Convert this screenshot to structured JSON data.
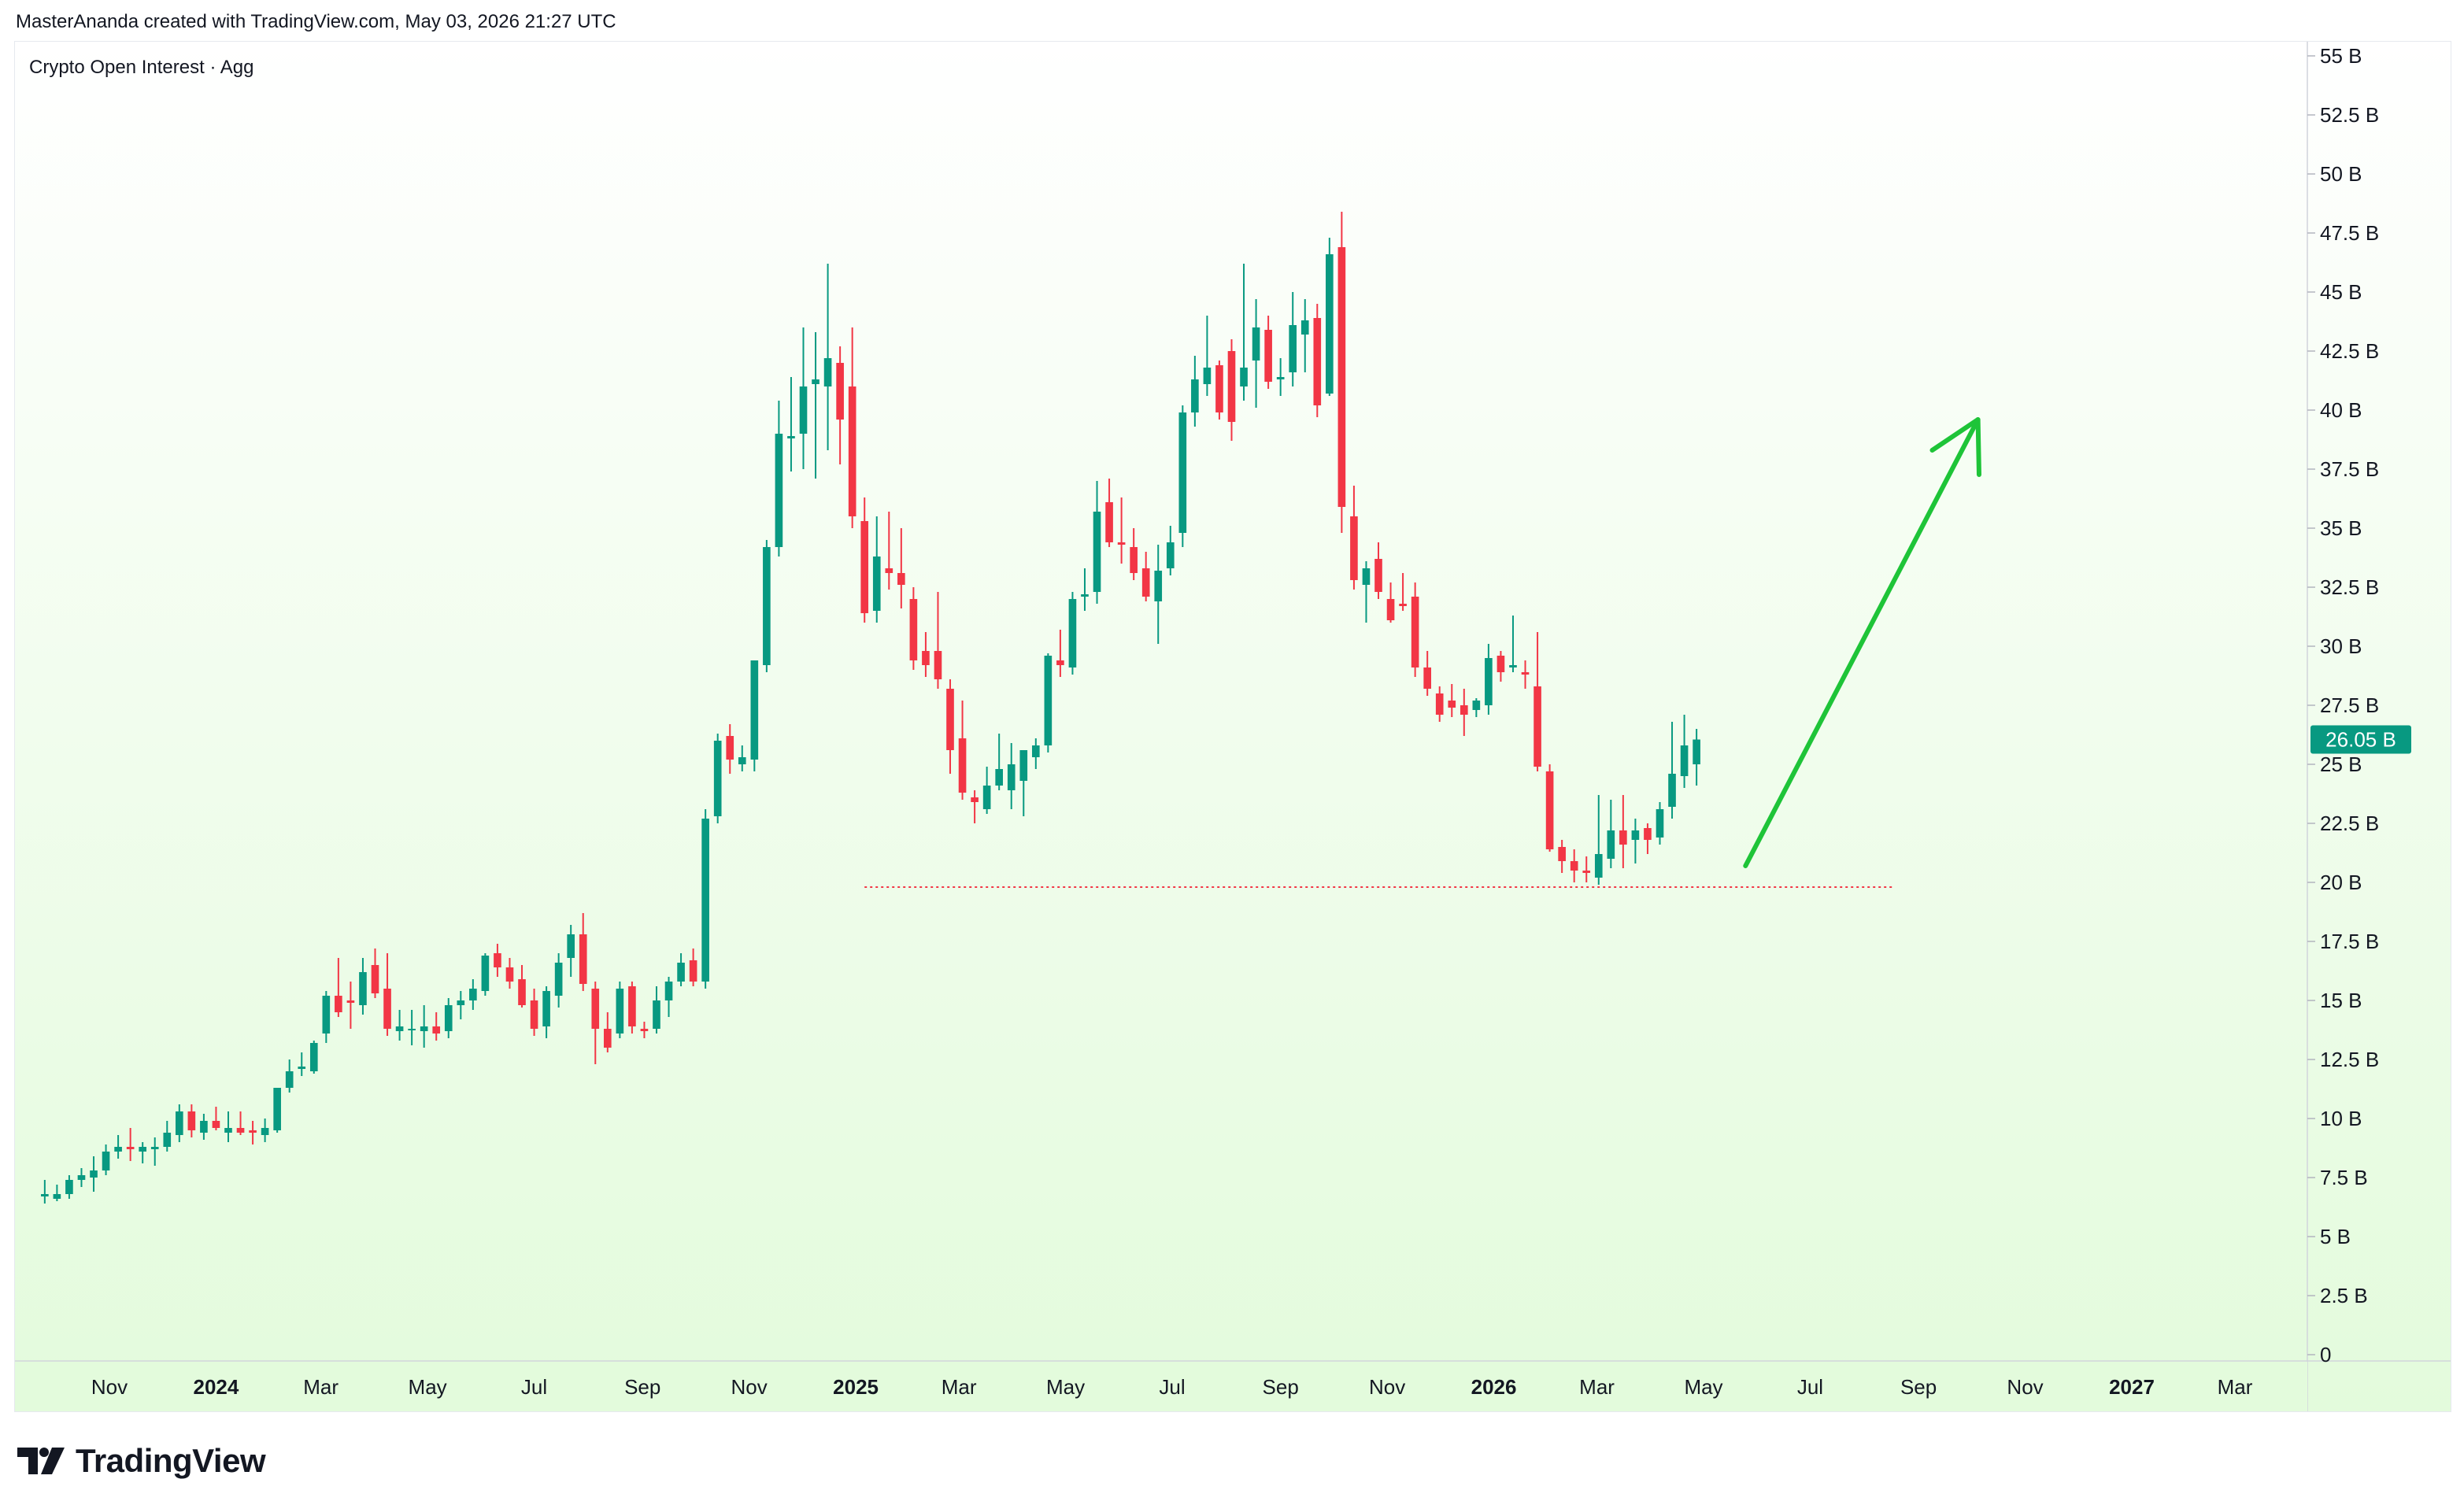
{
  "header": {
    "caption": "MasterAnanda created with TradingView.com, May 03, 2026 21:27 UTC"
  },
  "branding": {
    "logo_text": "TradingView",
    "logo_icon": "tradingview-logo-icon"
  },
  "colors": {
    "up": "#089981",
    "down": "#f23645",
    "arrow": "#1ec438",
    "support_line": "#f23645",
    "background_top": "#ffffff",
    "background_bottom": "#e3fbdc"
  },
  "chart_data": {
    "type": "candlestick",
    "title": "Crypto Open Interest · Agg",
    "interval": "weekly",
    "y_unit": "B",
    "ylim": [
      0,
      55
    ],
    "y_ticks": [
      "55 B",
      "52.5 B",
      "50 B",
      "47.5 B",
      "45 B",
      "42.5 B",
      "40 B",
      "37.5 B",
      "35 B",
      "32.5 B",
      "30 B",
      "27.5 B",
      "25 B",
      "22.5 B",
      "20 B",
      "17.5 B",
      "15 B",
      "12.5 B",
      "10 B",
      "7.5 B",
      "5 B",
      "2.5 B",
      "0"
    ],
    "x_ticks": [
      {
        "label": "Nov",
        "date": "2023-11-01",
        "bold": false
      },
      {
        "label": "2024",
        "date": "2024-01-01",
        "bold": true
      },
      {
        "label": "Mar",
        "date": "2024-03-01",
        "bold": false
      },
      {
        "label": "May",
        "date": "2024-05-01",
        "bold": false
      },
      {
        "label": "Jul",
        "date": "2024-07-01",
        "bold": false
      },
      {
        "label": "Sep",
        "date": "2024-09-01",
        "bold": false
      },
      {
        "label": "Nov",
        "date": "2024-11-01",
        "bold": false
      },
      {
        "label": "2025",
        "date": "2025-01-01",
        "bold": true
      },
      {
        "label": "Mar",
        "date": "2025-03-01",
        "bold": false
      },
      {
        "label": "May",
        "date": "2025-05-01",
        "bold": false
      },
      {
        "label": "Jul",
        "date": "2025-07-01",
        "bold": false
      },
      {
        "label": "Sep",
        "date": "2025-09-01",
        "bold": false
      },
      {
        "label": "Nov",
        "date": "2025-11-01",
        "bold": false
      },
      {
        "label": "2026",
        "date": "2026-01-01",
        "bold": true
      },
      {
        "label": "Mar",
        "date": "2026-03-01",
        "bold": false
      },
      {
        "label": "May",
        "date": "2026-05-01",
        "bold": false
      },
      {
        "label": "Jul",
        "date": "2026-07-01",
        "bold": false
      },
      {
        "label": "Sep",
        "date": "2026-09-01",
        "bold": false
      },
      {
        "label": "Nov",
        "date": "2026-11-01",
        "bold": false
      },
      {
        "label": "2027",
        "date": "2027-01-01",
        "bold": true
      },
      {
        "label": "Mar",
        "date": "2027-03-01",
        "bold": false
      }
    ],
    "candles": [
      {
        "date": "2023-09-25",
        "o": 6.7,
        "h": 7.4,
        "l": 6.4,
        "c": 6.8
      },
      {
        "date": "2023-10-02",
        "o": 6.6,
        "h": 7.2,
        "l": 6.5,
        "c": 6.8
      },
      {
        "date": "2023-10-09",
        "o": 6.8,
        "h": 7.6,
        "l": 6.6,
        "c": 7.4
      },
      {
        "date": "2023-10-16",
        "o": 7.4,
        "h": 7.9,
        "l": 7.1,
        "c": 7.6
      },
      {
        "date": "2023-10-23",
        "o": 7.5,
        "h": 8.4,
        "l": 6.9,
        "c": 7.8
      },
      {
        "date": "2023-10-30",
        "o": 7.8,
        "h": 8.9,
        "l": 7.6,
        "c": 8.6
      },
      {
        "date": "2023-11-06",
        "o": 8.6,
        "h": 9.3,
        "l": 8.3,
        "c": 8.8
      },
      {
        "date": "2023-11-13",
        "o": 8.8,
        "h": 9.6,
        "l": 8.2,
        "c": 8.7
      },
      {
        "date": "2023-11-20",
        "o": 8.6,
        "h": 9.0,
        "l": 8.1,
        "c": 8.8
      },
      {
        "date": "2023-11-27",
        "o": 8.7,
        "h": 9.2,
        "l": 8.0,
        "c": 8.8
      },
      {
        "date": "2023-12-04",
        "o": 8.8,
        "h": 9.9,
        "l": 8.6,
        "c": 9.4
      },
      {
        "date": "2023-12-11",
        "o": 9.3,
        "h": 10.6,
        "l": 9.0,
        "c": 10.3
      },
      {
        "date": "2023-12-18",
        "o": 10.3,
        "h": 10.6,
        "l": 9.2,
        "c": 9.5
      },
      {
        "date": "2023-12-25",
        "o": 9.4,
        "h": 10.2,
        "l": 9.1,
        "c": 9.9
      },
      {
        "date": "2024-01-01",
        "o": 9.9,
        "h": 10.5,
        "l": 9.5,
        "c": 9.6
      },
      {
        "date": "2024-01-08",
        "o": 9.4,
        "h": 10.3,
        "l": 9.0,
        "c": 9.6
      },
      {
        "date": "2024-01-15",
        "o": 9.6,
        "h": 10.3,
        "l": 9.3,
        "c": 9.4
      },
      {
        "date": "2024-01-22",
        "o": 9.5,
        "h": 9.9,
        "l": 8.9,
        "c": 9.4
      },
      {
        "date": "2024-01-29",
        "o": 9.3,
        "h": 10.0,
        "l": 9.0,
        "c": 9.6
      },
      {
        "date": "2024-02-05",
        "o": 9.5,
        "h": 11.1,
        "l": 9.4,
        "c": 11.3
      },
      {
        "date": "2024-02-12",
        "o": 11.3,
        "h": 12.5,
        "l": 11.1,
        "c": 12.0
      },
      {
        "date": "2024-02-19",
        "o": 12.1,
        "h": 12.8,
        "l": 11.8,
        "c": 12.2
      },
      {
        "date": "2024-02-26",
        "o": 12.0,
        "h": 13.3,
        "l": 11.9,
        "c": 13.2
      },
      {
        "date": "2024-03-04",
        "o": 13.6,
        "h": 15.4,
        "l": 13.2,
        "c": 15.2
      },
      {
        "date": "2024-03-11",
        "o": 15.2,
        "h": 16.8,
        "l": 14.3,
        "c": 14.5
      },
      {
        "date": "2024-03-18",
        "o": 15.0,
        "h": 15.8,
        "l": 13.8,
        "c": 14.9
      },
      {
        "date": "2024-03-25",
        "o": 14.8,
        "h": 16.8,
        "l": 14.4,
        "c": 16.2
      },
      {
        "date": "2024-04-01",
        "o": 16.5,
        "h": 17.2,
        "l": 15.1,
        "c": 15.3
      },
      {
        "date": "2024-04-08",
        "o": 15.5,
        "h": 17.0,
        "l": 13.5,
        "c": 13.8
      },
      {
        "date": "2024-04-15",
        "o": 13.7,
        "h": 14.6,
        "l": 13.3,
        "c": 13.9
      },
      {
        "date": "2024-04-22",
        "o": 13.8,
        "h": 14.6,
        "l": 13.1,
        "c": 13.8
      },
      {
        "date": "2024-04-29",
        "o": 13.7,
        "h": 14.8,
        "l": 13.0,
        "c": 13.9
      },
      {
        "date": "2024-05-06",
        "o": 13.9,
        "h": 14.5,
        "l": 13.3,
        "c": 13.6
      },
      {
        "date": "2024-05-13",
        "o": 13.7,
        "h": 15.1,
        "l": 13.4,
        "c": 14.8
      },
      {
        "date": "2024-05-20",
        "o": 14.8,
        "h": 15.4,
        "l": 14.2,
        "c": 15.0
      },
      {
        "date": "2024-05-27",
        "o": 15.0,
        "h": 15.9,
        "l": 14.6,
        "c": 15.5
      },
      {
        "date": "2024-06-03",
        "o": 15.4,
        "h": 17.0,
        "l": 15.2,
        "c": 16.9
      },
      {
        "date": "2024-06-10",
        "o": 17.0,
        "h": 17.4,
        "l": 16.0,
        "c": 16.4
      },
      {
        "date": "2024-06-17",
        "o": 16.4,
        "h": 16.8,
        "l": 15.5,
        "c": 15.8
      },
      {
        "date": "2024-06-24",
        "o": 15.9,
        "h": 16.5,
        "l": 14.7,
        "c": 14.8
      },
      {
        "date": "2024-07-01",
        "o": 15.0,
        "h": 15.5,
        "l": 13.5,
        "c": 13.8
      },
      {
        "date": "2024-07-08",
        "o": 13.9,
        "h": 15.6,
        "l": 13.4,
        "c": 15.4
      },
      {
        "date": "2024-07-15",
        "o": 15.2,
        "h": 17.0,
        "l": 14.7,
        "c": 16.6
      },
      {
        "date": "2024-07-22",
        "o": 16.8,
        "h": 18.2,
        "l": 16.0,
        "c": 17.8
      },
      {
        "date": "2024-07-29",
        "o": 17.8,
        "h": 18.7,
        "l": 15.4,
        "c": 15.7
      },
      {
        "date": "2024-08-05",
        "o": 15.5,
        "h": 15.8,
        "l": 12.3,
        "c": 13.8
      },
      {
        "date": "2024-08-12",
        "o": 13.8,
        "h": 14.5,
        "l": 12.8,
        "c": 13.0
      },
      {
        "date": "2024-08-19",
        "o": 13.6,
        "h": 15.8,
        "l": 13.4,
        "c": 15.5
      },
      {
        "date": "2024-08-26",
        "o": 15.6,
        "h": 15.8,
        "l": 13.6,
        "c": 13.9
      },
      {
        "date": "2024-09-02",
        "o": 13.8,
        "h": 14.1,
        "l": 13.4,
        "c": 13.7
      },
      {
        "date": "2024-09-09",
        "o": 13.8,
        "h": 15.6,
        "l": 13.6,
        "c": 15.0
      },
      {
        "date": "2024-09-16",
        "o": 15.0,
        "h": 16.0,
        "l": 14.3,
        "c": 15.8
      },
      {
        "date": "2024-09-23",
        "o": 15.8,
        "h": 17.0,
        "l": 15.6,
        "c": 16.6
      },
      {
        "date": "2024-09-30",
        "o": 16.7,
        "h": 17.2,
        "l": 15.6,
        "c": 15.8
      },
      {
        "date": "2024-10-07",
        "o": 15.8,
        "h": 23.1,
        "l": 15.5,
        "c": 22.7
      },
      {
        "date": "2024-10-14",
        "o": 22.8,
        "h": 26.3,
        "l": 22.5,
        "c": 26.0
      },
      {
        "date": "2024-10-21",
        "o": 26.2,
        "h": 26.7,
        "l": 24.6,
        "c": 25.2
      },
      {
        "date": "2024-10-28",
        "o": 25.0,
        "h": 25.8,
        "l": 24.7,
        "c": 25.3
      },
      {
        "date": "2024-11-04",
        "o": 25.2,
        "h": 29.4,
        "l": 24.7,
        "c": 29.4
      },
      {
        "date": "2024-11-11",
        "o": 29.2,
        "h": 34.5,
        "l": 28.9,
        "c": 34.2
      },
      {
        "date": "2024-11-18",
        "o": 34.2,
        "h": 40.4,
        "l": 33.8,
        "c": 39.0
      },
      {
        "date": "2024-11-25",
        "o": 38.8,
        "h": 41.4,
        "l": 37.4,
        "c": 38.9
      },
      {
        "date": "2024-12-02",
        "o": 39.0,
        "h": 43.5,
        "l": 37.5,
        "c": 41.0
      },
      {
        "date": "2024-12-09",
        "o": 41.1,
        "h": 43.3,
        "l": 37.1,
        "c": 41.3
      },
      {
        "date": "2024-12-16",
        "o": 41.0,
        "h": 46.2,
        "l": 38.3,
        "c": 42.2
      },
      {
        "date": "2024-12-23",
        "o": 42.0,
        "h": 42.7,
        "l": 37.7,
        "c": 39.6
      },
      {
        "date": "2024-12-30",
        "o": 41.0,
        "h": 43.5,
        "l": 35.0,
        "c": 35.5
      },
      {
        "date": "2025-01-06",
        "o": 35.3,
        "h": 36.3,
        "l": 31.0,
        "c": 31.4
      },
      {
        "date": "2025-01-13",
        "o": 31.5,
        "h": 35.5,
        "l": 31.0,
        "c": 33.8
      },
      {
        "date": "2025-01-20",
        "o": 33.3,
        "h": 35.7,
        "l": 32.4,
        "c": 33.1
      },
      {
        "date": "2025-01-27",
        "o": 33.1,
        "h": 35.0,
        "l": 31.6,
        "c": 32.6
      },
      {
        "date": "2025-02-03",
        "o": 32.0,
        "h": 32.5,
        "l": 29.0,
        "c": 29.4
      },
      {
        "date": "2025-02-10",
        "o": 29.8,
        "h": 30.6,
        "l": 28.7,
        "c": 29.2
      },
      {
        "date": "2025-02-17",
        "o": 29.8,
        "h": 32.3,
        "l": 28.2,
        "c": 28.6
      },
      {
        "date": "2025-02-24",
        "o": 28.2,
        "h": 28.6,
        "l": 24.6,
        "c": 25.6
      },
      {
        "date": "2025-03-03",
        "o": 26.1,
        "h": 27.7,
        "l": 23.5,
        "c": 23.8
      },
      {
        "date": "2025-03-10",
        "o": 23.6,
        "h": 23.9,
        "l": 22.5,
        "c": 23.4
      },
      {
        "date": "2025-03-17",
        "o": 23.1,
        "h": 24.9,
        "l": 22.9,
        "c": 24.1
      },
      {
        "date": "2025-03-24",
        "o": 24.1,
        "h": 26.3,
        "l": 23.9,
        "c": 24.8
      },
      {
        "date": "2025-03-31",
        "o": 23.9,
        "h": 25.9,
        "l": 23.1,
        "c": 25.0
      },
      {
        "date": "2025-04-07",
        "o": 24.3,
        "h": 25.3,
        "l": 22.8,
        "c": 25.6
      },
      {
        "date": "2025-04-14",
        "o": 25.3,
        "h": 26.1,
        "l": 24.8,
        "c": 25.8
      },
      {
        "date": "2025-04-21",
        "o": 25.8,
        "h": 29.7,
        "l": 25.5,
        "c": 29.6
      },
      {
        "date": "2025-04-28",
        "o": 29.4,
        "h": 30.7,
        "l": 28.7,
        "c": 29.2
      },
      {
        "date": "2025-05-05",
        "o": 29.1,
        "h": 32.3,
        "l": 28.8,
        "c": 32.0
      },
      {
        "date": "2025-05-12",
        "o": 32.1,
        "h": 33.3,
        "l": 31.5,
        "c": 32.2
      },
      {
        "date": "2025-05-19",
        "o": 32.3,
        "h": 37.0,
        "l": 31.8,
        "c": 35.7
      },
      {
        "date": "2025-05-26",
        "o": 36.1,
        "h": 37.1,
        "l": 34.2,
        "c": 34.4
      },
      {
        "date": "2025-06-02",
        "o": 34.4,
        "h": 36.3,
        "l": 33.5,
        "c": 34.3
      },
      {
        "date": "2025-06-09",
        "o": 34.2,
        "h": 35.0,
        "l": 32.8,
        "c": 33.1
      },
      {
        "date": "2025-06-16",
        "o": 33.3,
        "h": 34.0,
        "l": 31.9,
        "c": 32.1
      },
      {
        "date": "2025-06-23",
        "o": 31.9,
        "h": 34.3,
        "l": 30.1,
        "c": 33.2
      },
      {
        "date": "2025-06-30",
        "o": 33.3,
        "h": 35.1,
        "l": 33.0,
        "c": 34.4
      },
      {
        "date": "2025-07-07",
        "o": 34.8,
        "h": 40.2,
        "l": 34.2,
        "c": 39.9
      },
      {
        "date": "2025-07-14",
        "o": 39.9,
        "h": 42.3,
        "l": 39.3,
        "c": 41.3
      },
      {
        "date": "2025-07-21",
        "o": 41.1,
        "h": 44.0,
        "l": 40.6,
        "c": 41.8
      },
      {
        "date": "2025-07-28",
        "o": 41.9,
        "h": 42.1,
        "l": 39.6,
        "c": 39.9
      },
      {
        "date": "2025-08-04",
        "o": 42.5,
        "h": 43.0,
        "l": 38.7,
        "c": 39.5
      },
      {
        "date": "2025-08-11",
        "o": 41.0,
        "h": 46.2,
        "l": 40.4,
        "c": 41.8
      },
      {
        "date": "2025-08-18",
        "o": 42.1,
        "h": 44.7,
        "l": 40.1,
        "c": 43.5
      },
      {
        "date": "2025-08-25",
        "o": 43.4,
        "h": 44.0,
        "l": 40.9,
        "c": 41.2
      },
      {
        "date": "2025-09-01",
        "o": 41.3,
        "h": 42.2,
        "l": 40.6,
        "c": 41.4
      },
      {
        "date": "2025-09-08",
        "o": 41.6,
        "h": 45.0,
        "l": 41.0,
        "c": 43.6
      },
      {
        "date": "2025-09-15",
        "o": 43.2,
        "h": 44.7,
        "l": 41.6,
        "c": 43.8
      },
      {
        "date": "2025-09-22",
        "o": 43.9,
        "h": 44.5,
        "l": 39.7,
        "c": 40.2
      },
      {
        "date": "2025-09-29",
        "o": 40.7,
        "h": 47.3,
        "l": 40.6,
        "c": 46.6
      },
      {
        "date": "2025-10-06",
        "o": 46.9,
        "h": 48.4,
        "l": 34.8,
        "c": 35.9
      },
      {
        "date": "2025-10-13",
        "o": 35.5,
        "h": 36.8,
        "l": 32.4,
        "c": 32.8
      },
      {
        "date": "2025-10-20",
        "o": 32.6,
        "h": 33.6,
        "l": 31.0,
        "c": 33.3
      },
      {
        "date": "2025-10-27",
        "o": 33.7,
        "h": 34.4,
        "l": 32.0,
        "c": 32.3
      },
      {
        "date": "2025-11-03",
        "o": 32.0,
        "h": 32.7,
        "l": 31.0,
        "c": 31.1
      },
      {
        "date": "2025-11-10",
        "o": 31.8,
        "h": 33.1,
        "l": 31.5,
        "c": 31.7
      },
      {
        "date": "2025-11-17",
        "o": 32.1,
        "h": 32.7,
        "l": 28.7,
        "c": 29.1
      },
      {
        "date": "2025-11-24",
        "o": 29.1,
        "h": 29.8,
        "l": 27.9,
        "c": 28.2
      },
      {
        "date": "2025-12-01",
        "o": 28.0,
        "h": 28.3,
        "l": 26.8,
        "c": 27.1
      },
      {
        "date": "2025-12-08",
        "o": 27.7,
        "h": 28.4,
        "l": 27.0,
        "c": 27.4
      },
      {
        "date": "2025-12-15",
        "o": 27.5,
        "h": 28.2,
        "l": 26.2,
        "c": 27.1
      },
      {
        "date": "2025-12-22",
        "o": 27.3,
        "h": 27.8,
        "l": 27.0,
        "c": 27.7
      },
      {
        "date": "2025-12-29",
        "o": 27.5,
        "h": 30.1,
        "l": 27.1,
        "c": 29.5
      },
      {
        "date": "2026-01-05",
        "o": 29.6,
        "h": 29.8,
        "l": 28.5,
        "c": 28.9
      },
      {
        "date": "2026-01-12",
        "o": 29.1,
        "h": 31.3,
        "l": 28.9,
        "c": 29.2
      },
      {
        "date": "2026-01-19",
        "o": 28.9,
        "h": 29.4,
        "l": 28.2,
        "c": 28.8
      },
      {
        "date": "2026-01-26",
        "o": 28.3,
        "h": 30.6,
        "l": 24.7,
        "c": 24.9
      },
      {
        "date": "2026-02-02",
        "o": 24.7,
        "h": 25.0,
        "l": 21.3,
        "c": 21.4
      },
      {
        "date": "2026-02-09",
        "o": 21.5,
        "h": 21.8,
        "l": 20.4,
        "c": 20.9
      },
      {
        "date": "2026-02-16",
        "o": 20.9,
        "h": 21.4,
        "l": 20.0,
        "c": 20.5
      },
      {
        "date": "2026-02-23",
        "o": 20.5,
        "h": 21.1,
        "l": 20.0,
        "c": 20.4
      },
      {
        "date": "2026-03-02",
        "o": 20.2,
        "h": 23.7,
        "l": 19.9,
        "c": 21.2
      },
      {
        "date": "2026-03-09",
        "o": 21.0,
        "h": 23.5,
        "l": 20.6,
        "c": 22.2
      },
      {
        "date": "2026-03-16",
        "o": 22.2,
        "h": 23.7,
        "l": 20.6,
        "c": 21.6
      },
      {
        "date": "2026-03-23",
        "o": 21.8,
        "h": 22.7,
        "l": 20.8,
        "c": 22.2
      },
      {
        "date": "2026-03-30",
        "o": 22.3,
        "h": 22.5,
        "l": 21.2,
        "c": 21.8
      },
      {
        "date": "2026-04-06",
        "o": 21.9,
        "h": 23.4,
        "l": 21.6,
        "c": 23.1
      },
      {
        "date": "2026-04-13",
        "o": 23.2,
        "h": 26.8,
        "l": 22.7,
        "c": 24.6
      },
      {
        "date": "2026-04-20",
        "o": 24.5,
        "h": 27.1,
        "l": 24.0,
        "c": 25.8
      },
      {
        "date": "2026-04-27",
        "o": 25.0,
        "h": 26.5,
        "l": 24.1,
        "c": 26.05
      }
    ],
    "last_price_label": "26.05 B",
    "last_price": 26.05,
    "support_line": {
      "y": 19.8,
      "from_date": "2025-01-06",
      "to_date": "2026-08-17"
    },
    "projection_arrow": {
      "from_date": "2026-05-25",
      "from_y": 20.7,
      "to_date": "2026-10-05",
      "to_y": 39.6
    }
  }
}
